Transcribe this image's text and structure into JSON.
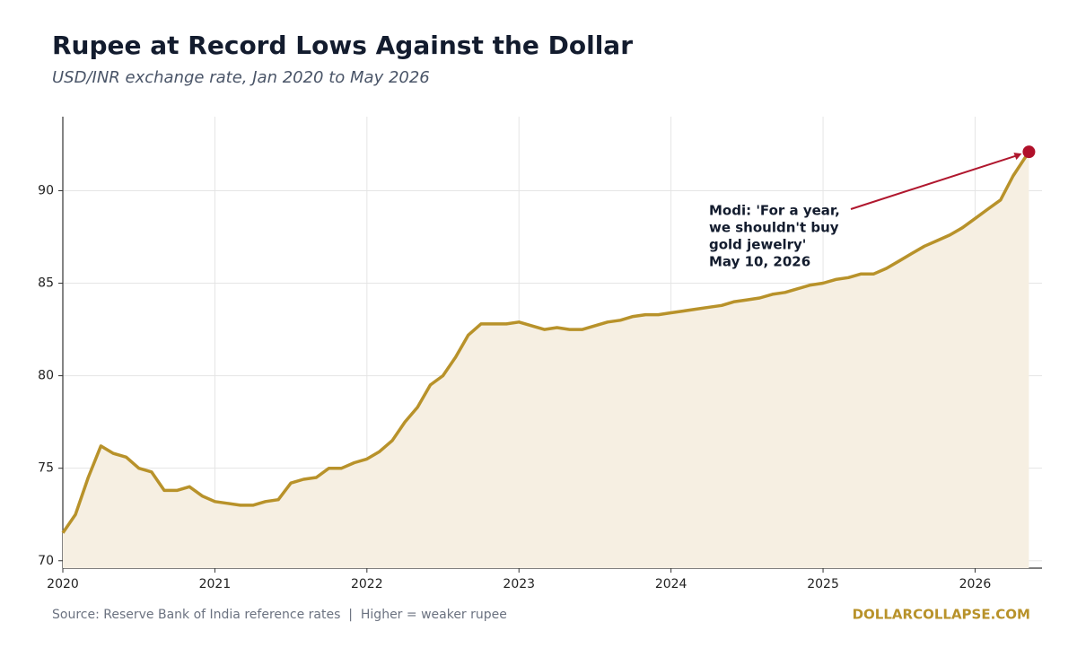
{
  "chart_data": {
    "type": "line",
    "title": "Rupee at Record Lows Against the Dollar",
    "subtitle": "USD/INR exchange rate, Jan 2020 to May 2026",
    "x": [
      2020.0,
      2020.083,
      2020.167,
      2020.25,
      2020.333,
      2020.417,
      2020.5,
      2020.583,
      2020.667,
      2020.75,
      2020.833,
      2020.917,
      2021.0,
      2021.083,
      2021.167,
      2021.25,
      2021.333,
      2021.417,
      2021.5,
      2021.583,
      2021.667,
      2021.75,
      2021.833,
      2021.917,
      2022.0,
      2022.083,
      2022.167,
      2022.25,
      2022.333,
      2022.417,
      2022.5,
      2022.583,
      2022.667,
      2022.75,
      2022.833,
      2022.917,
      2023.0,
      2023.083,
      2023.167,
      2023.25,
      2023.333,
      2023.417,
      2023.5,
      2023.583,
      2023.667,
      2023.75,
      2023.833,
      2023.917,
      2024.0,
      2024.083,
      2024.167,
      2024.25,
      2024.333,
      2024.417,
      2024.5,
      2024.583,
      2024.667,
      2024.75,
      2024.833,
      2024.917,
      2025.0,
      2025.083,
      2025.167,
      2025.25,
      2025.333,
      2025.417,
      2025.5,
      2025.583,
      2025.667,
      2025.75,
      2025.833,
      2025.917,
      2026.0,
      2026.083,
      2026.167,
      2026.25,
      2026.354
    ],
    "values": [
      71.5,
      72.5,
      74.5,
      76.2,
      75.8,
      75.6,
      75.0,
      74.8,
      73.8,
      73.8,
      74.0,
      73.5,
      73.2,
      73.1,
      73.0,
      73.0,
      73.2,
      73.3,
      74.2,
      74.4,
      74.5,
      75.0,
      75.0,
      75.3,
      75.5,
      75.9,
      76.5,
      77.5,
      78.3,
      79.5,
      80.0,
      81.0,
      82.2,
      82.8,
      82.8,
      82.8,
      82.9,
      82.7,
      82.5,
      82.6,
      82.5,
      82.5,
      82.7,
      82.9,
      83.0,
      83.2,
      83.3,
      83.3,
      83.4,
      83.5,
      83.6,
      83.7,
      83.8,
      84.0,
      84.1,
      84.2,
      84.4,
      84.5,
      84.7,
      84.9,
      85.0,
      85.2,
      85.3,
      85.5,
      85.5,
      85.8,
      86.2,
      86.6,
      87.0,
      87.3,
      87.6,
      88.0,
      88.5,
      89.0,
      89.5,
      90.8,
      92.1
    ],
    "color": "#b8922a",
    "fill_color": "#f6efe2",
    "marker_color": "#b0102a",
    "xlim": [
      2020,
      2026.44
    ],
    "xticks": [
      2020,
      2021,
      2022,
      2023,
      2024,
      2025,
      2026
    ],
    "ylim": [
      69.6,
      94
    ],
    "yticks": [
      70,
      75,
      80,
      85,
      90
    ],
    "grid": true,
    "annotation": {
      "lines": [
        "Modi: 'For a year,",
        "we shouldn't buy",
        "gold jewelry'",
        "May 10, 2026"
      ]
    },
    "source": "Source: Reserve Bank of India reference rates  |  Higher = weaker rupee",
    "brand": "DOLLARCOLLAPSE.COM"
  }
}
